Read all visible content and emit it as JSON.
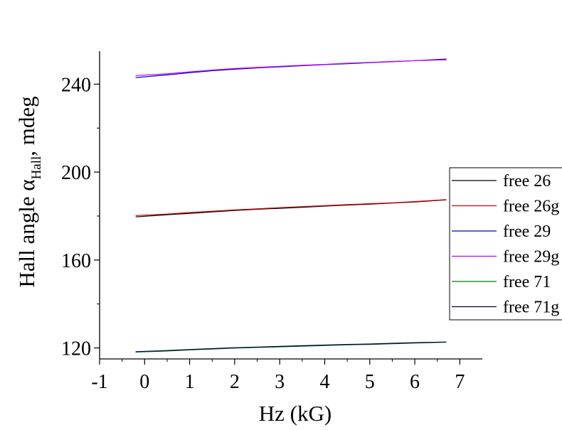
{
  "chart_data": {
    "type": "line",
    "title": "",
    "xlabel": "Hz (kG)",
    "ylabel": {
      "prefix": "Hall angle ",
      "symbol": "α",
      "subscript": "Hall",
      "suffix": ", mdeg"
    },
    "xlim": [
      -1,
      7.5
    ],
    "ylim": [
      115,
      255
    ],
    "xticks": [
      -1,
      0,
      1,
      2,
      3,
      4,
      5,
      6,
      7
    ],
    "xtick_labels": [
      "-1",
      "0",
      "1",
      "2",
      "3",
      "4",
      "5",
      "6",
      "7"
    ],
    "yticks": [
      120,
      160,
      200,
      240
    ],
    "ytick_labels": [
      "120",
      "160",
      "200",
      "240"
    ],
    "grid": false,
    "legend_position": "right",
    "series": [
      {
        "name": "free 26",
        "color": "#000000",
        "x": [
          -0.2,
          0.5,
          1.0,
          1.5,
          2.0,
          2.5,
          3.0,
          3.5,
          4.0,
          4.5,
          5.0,
          5.5,
          6.0,
          6.7
        ],
        "y": [
          179.6,
          180.6,
          181.2,
          181.9,
          182.5,
          183.1,
          183.5,
          184.0,
          184.5,
          185.0,
          185.4,
          185.9,
          186.4,
          187.4
        ]
      },
      {
        "name": "free 26g",
        "color": "#d00000",
        "x": [
          -0.2,
          0.5,
          1.0,
          1.5,
          2.0,
          2.5,
          3.0,
          3.5,
          4.0,
          4.5,
          5.0,
          5.5,
          6.0,
          6.7
        ],
        "y": [
          180.2,
          180.9,
          181.6,
          182.2,
          182.8,
          183.3,
          183.8,
          184.3,
          184.7,
          185.2,
          185.6,
          186.0,
          186.6,
          187.5
        ]
      },
      {
        "name": "free 29",
        "color": "#0000c8",
        "x": [
          -0.2,
          0.5,
          1.0,
          1.5,
          2.0,
          2.5,
          3.0,
          3.5,
          4.0,
          4.5,
          5.0,
          5.5,
          6.0,
          6.7
        ],
        "y": [
          243.0,
          244.2,
          245.2,
          246.1,
          246.8,
          247.4,
          247.9,
          248.4,
          248.9,
          249.3,
          249.8,
          250.2,
          250.7,
          251.4
        ]
      },
      {
        "name": "free 29g",
        "color": "#c000ff",
        "x": [
          -0.2,
          0.5,
          1.0,
          1.5,
          2.0,
          2.5,
          3.0,
          3.5,
          4.0,
          4.5,
          5.0,
          5.5,
          6.0,
          6.7
        ],
        "y": [
          243.9,
          244.7,
          245.6,
          246.4,
          247.1,
          247.6,
          248.1,
          248.6,
          249.0,
          249.5,
          249.9,
          250.3,
          250.7,
          251.1
        ]
      },
      {
        "name": "free 71",
        "color": "#008000",
        "x": [
          -0.2,
          0.5,
          1.0,
          1.5,
          2.0,
          2.5,
          3.0,
          3.5,
          4.0,
          4.5,
          5.0,
          5.5,
          6.0,
          6.7
        ],
        "y": [
          118.1,
          118.6,
          119.1,
          119.5,
          119.9,
          120.2,
          120.5,
          120.8,
          121.1,
          121.4,
          121.6,
          121.9,
          122.2,
          122.6
        ]
      },
      {
        "name": "free 71g",
        "color": "#000040",
        "x": [
          -0.2,
          0.5,
          1.0,
          1.5,
          2.0,
          2.5,
          3.0,
          3.5,
          4.0,
          4.5,
          5.0,
          5.5,
          6.0,
          6.7
        ],
        "y": [
          118.3,
          118.8,
          119.3,
          119.7,
          120.1,
          120.4,
          120.7,
          121.0,
          121.3,
          121.6,
          121.8,
          122.1,
          122.4,
          122.7
        ]
      }
    ]
  }
}
